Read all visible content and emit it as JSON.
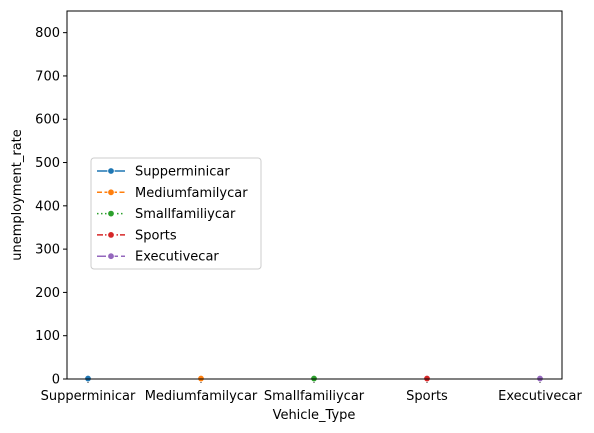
{
  "chart_data": {
    "type": "line",
    "xlabel": "Vehicle_Type",
    "ylabel": "unemployment_rate",
    "categories": [
      "Supperminicar",
      "Mediumfamilycar",
      "Smallfamiliycar",
      "Sports",
      "Executivecar"
    ],
    "ylim": [
      0,
      850
    ],
    "yticks": [
      0,
      100,
      200,
      300,
      400,
      500,
      600,
      700,
      800
    ],
    "grid": false,
    "legend_position": "center-left",
    "series": [
      {
        "name": "Supperminicar",
        "color": "#1f77b4",
        "dash": "solid",
        "points": [
          {
            "x": "Supperminicar",
            "y": 1
          }
        ]
      },
      {
        "name": "Mediumfamilycar",
        "color": "#ff7f0e",
        "dash": "dashed",
        "points": [
          {
            "x": "Mediumfamilycar",
            "y": 1
          }
        ]
      },
      {
        "name": "Smallfamiliycar",
        "color": "#2ca02c",
        "dash": "dotted",
        "points": [
          {
            "x": "Smallfamiliycar",
            "y": 1
          }
        ]
      },
      {
        "name": "Sports",
        "color": "#d62728",
        "dash": "dashdot",
        "points": [
          {
            "x": "Sports",
            "y": 1
          }
        ]
      },
      {
        "name": "Executivecar",
        "color": "#9467bd",
        "dash": "longdash",
        "points": [
          {
            "x": "Executivecar",
            "y": 1
          }
        ]
      }
    ]
  }
}
